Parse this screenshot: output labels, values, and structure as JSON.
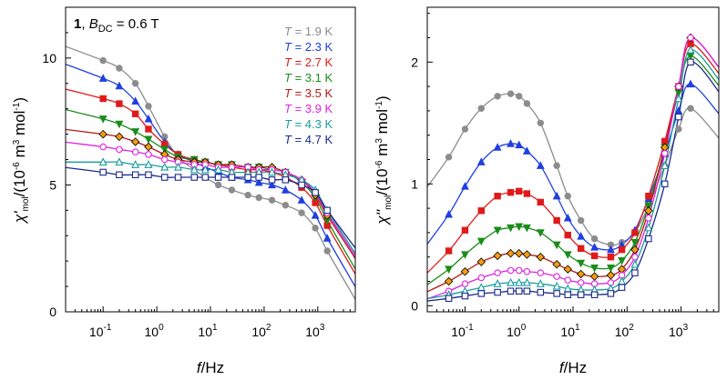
{
  "figure": {
    "panel_label": {
      "compound": "1",
      "field_symbol": "B",
      "field_sub": "DC",
      "field_value": " = 0.6 T"
    },
    "legend_temperatures": [
      {
        "prefix": "T",
        "value": " = 1.9 K",
        "color": "#8c8c8c"
      },
      {
        "prefix": "T",
        "value": " = 2.3 K",
        "color": "#1f3fe0"
      },
      {
        "prefix": "T",
        "value": " = 2.7 K",
        "color": "#e01a1a"
      },
      {
        "prefix": "T",
        "value": " = 3.1 K",
        "color": "#1a8c1a"
      },
      {
        "prefix": "T",
        "value": " = 3.5 K",
        "color": "#b41818"
      },
      {
        "prefix": "T",
        "value": " = 3.9 K",
        "color": "#e020e0"
      },
      {
        "prefix": "T",
        "value": " = 4.3 K",
        "color": "#1a9c9c"
      },
      {
        "prefix": "T",
        "value": " = 4.7 K",
        "color": "#1a2a8c"
      }
    ]
  },
  "chart_data": [
    {
      "type": "scatter",
      "title": "",
      "xlabel_italic": "f",
      "xlabel_rest": "/Hz",
      "ylabel": "χ'mol/(10-6 m3 mol-1)",
      "xscale": "log",
      "xlim": [
        0.02,
        5000
      ],
      "ylim": [
        0,
        12
      ],
      "x_ticks": [
        "10-1",
        "100",
        "101",
        "102",
        "103"
      ],
      "y_ticks": [
        "0",
        "5",
        "10"
      ],
      "x": [
        0.1,
        0.2,
        0.4,
        0.7,
        1.4,
        2.5,
        5,
        8,
        14,
        25,
        50,
        80,
        140,
        250,
        500,
        900,
        1500
      ],
      "series": [
        {
          "name": "T = 1.9 K",
          "color": "#8c8c8c",
          "marker": "circle",
          "fit": true,
          "values": [
            9.9,
            9.6,
            9.0,
            8.1,
            6.9,
            6.1,
            5.6,
            5.3,
            5.0,
            4.8,
            4.6,
            4.5,
            4.4,
            4.2,
            3.9,
            3.3,
            2.4
          ]
        },
        {
          "name": "T = 2.3 K",
          "color": "#1f3fe0",
          "marker": "triangle-up",
          "fit": true,
          "values": [
            9.2,
            8.9,
            8.3,
            7.6,
            6.7,
            6.2,
            5.9,
            5.7,
            5.5,
            5.3,
            5.2,
            5.1,
            5.0,
            4.8,
            4.4,
            3.8,
            2.9
          ]
        },
        {
          "name": "T = 2.7 K",
          "color": "#e01a1a",
          "marker": "square-filled",
          "fit": true,
          "values": [
            8.4,
            8.2,
            7.8,
            7.2,
            6.6,
            6.2,
            6.0,
            5.9,
            5.8,
            5.7,
            5.6,
            5.6,
            5.5,
            5.3,
            4.9,
            4.3,
            3.4
          ]
        },
        {
          "name": "T = 3.1 K",
          "color": "#1a8c1a",
          "marker": "triangle-down",
          "fit": true,
          "values": [
            7.6,
            7.4,
            7.1,
            6.8,
            6.4,
            6.1,
            6.0,
            5.9,
            5.8,
            5.8,
            5.7,
            5.7,
            5.6,
            5.5,
            5.1,
            4.5,
            3.6
          ]
        },
        {
          "name": "T = 3.5 K",
          "color": "#b41818",
          "marker": "diamond",
          "markerFill": "#f39c12",
          "fit": true,
          "values": [
            7.0,
            6.9,
            6.7,
            6.5,
            6.2,
            6.0,
            5.9,
            5.9,
            5.8,
            5.8,
            5.7,
            5.7,
            5.7,
            5.5,
            5.2,
            4.6,
            3.8
          ]
        },
        {
          "name": "T = 3.9 K",
          "color": "#e020e0",
          "marker": "circle-open",
          "fit": true,
          "values": [
            6.5,
            6.4,
            6.3,
            6.2,
            6.0,
            5.9,
            5.8,
            5.8,
            5.7,
            5.7,
            5.7,
            5.6,
            5.6,
            5.5,
            5.2,
            4.7,
            3.9
          ]
        },
        {
          "name": "T = 4.3 K",
          "color": "#1a9c9c",
          "marker": "triangle-open",
          "fit": true,
          "values": [
            5.9,
            5.9,
            5.8,
            5.8,
            5.7,
            5.7,
            5.6,
            5.6,
            5.6,
            5.5,
            5.5,
            5.5,
            5.5,
            5.4,
            5.2,
            4.8,
            4.0
          ]
        },
        {
          "name": "T = 4.7 K",
          "color": "#1a2a8c",
          "marker": "square-open",
          "fit": true,
          "values": [
            5.5,
            5.4,
            5.4,
            5.4,
            5.3,
            5.3,
            5.3,
            5.3,
            5.3,
            5.3,
            5.3,
            5.3,
            5.2,
            5.2,
            5.0,
            4.7,
            4.0
          ]
        }
      ]
    },
    {
      "type": "scatter",
      "title": "",
      "xlabel_italic": "f",
      "xlabel_rest": "/Hz",
      "ylabel": "χ''mol/(10-6 m3 mol-1)",
      "xscale": "log",
      "xlim": [
        0.02,
        5000
      ],
      "ylim": [
        -0.05,
        2.45
      ],
      "x_ticks": [
        "10-1",
        "100",
        "101",
        "102",
        "103"
      ],
      "y_ticks": [
        "0",
        "1",
        "2"
      ],
      "x": [
        0.05,
        0.1,
        0.2,
        0.4,
        0.7,
        1.0,
        1.4,
        2.5,
        5,
        8,
        14,
        25,
        50,
        80,
        140,
        250,
        500,
        900,
        1500
      ],
      "series": [
        {
          "name": "T = 1.9 K",
          "color": "#8c8c8c",
          "marker": "circle",
          "fit": true,
          "values": [
            1.22,
            1.45,
            1.62,
            1.72,
            1.74,
            1.72,
            1.66,
            1.5,
            1.15,
            0.9,
            0.7,
            0.55,
            0.5,
            0.52,
            0.6,
            0.82,
            1.15,
            1.45,
            1.62
          ]
        },
        {
          "name": "T = 2.3 K",
          "color": "#1f3fe0",
          "marker": "triangle-up",
          "fit": true,
          "values": [
            0.75,
            0.98,
            1.18,
            1.3,
            1.33,
            1.32,
            1.27,
            1.15,
            0.9,
            0.72,
            0.57,
            0.48,
            0.46,
            0.5,
            0.62,
            0.88,
            1.25,
            1.6,
            1.82
          ]
        },
        {
          "name": "T = 2.7 K",
          "color": "#e01a1a",
          "marker": "square-filled",
          "fit": true,
          "values": [
            0.45,
            0.62,
            0.78,
            0.9,
            0.93,
            0.94,
            0.92,
            0.85,
            0.7,
            0.58,
            0.47,
            0.41,
            0.4,
            0.46,
            0.6,
            0.9,
            1.35,
            1.8,
            2.15
          ]
        },
        {
          "name": "T = 3.1 K",
          "color": "#1a8c1a",
          "marker": "triangle-down",
          "fit": true,
          "values": [
            0.3,
            0.42,
            0.53,
            0.62,
            0.64,
            0.65,
            0.64,
            0.6,
            0.5,
            0.42,
            0.35,
            0.31,
            0.31,
            0.37,
            0.52,
            0.82,
            1.3,
            1.75,
            2.05
          ]
        },
        {
          "name": "T = 3.5 K",
          "color": "#b41818",
          "marker": "diamond",
          "markerFill": "#f39c12",
          "fit": true,
          "values": [
            0.2,
            0.28,
            0.36,
            0.41,
            0.43,
            0.43,
            0.42,
            0.4,
            0.34,
            0.3,
            0.26,
            0.24,
            0.25,
            0.3,
            0.46,
            0.78,
            1.3,
            1.8,
            2.2
          ]
        },
        {
          "name": "T = 3.9 K",
          "color": "#e020e0",
          "marker": "circle-open",
          "fit": true,
          "values": [
            0.12,
            0.18,
            0.23,
            0.27,
            0.29,
            0.29,
            0.28,
            0.27,
            0.24,
            0.21,
            0.19,
            0.18,
            0.19,
            0.25,
            0.4,
            0.72,
            1.25,
            1.8,
            2.2
          ]
        },
        {
          "name": "T = 4.3 K",
          "color": "#1a9c9c",
          "marker": "triangle-open",
          "fit": true,
          "values": [
            0.09,
            0.12,
            0.15,
            0.18,
            0.19,
            0.19,
            0.19,
            0.18,
            0.16,
            0.14,
            0.13,
            0.13,
            0.14,
            0.2,
            0.34,
            0.64,
            1.15,
            1.7,
            2.1
          ]
        },
        {
          "name": "T = 4.7 K",
          "color": "#1a2a8c",
          "marker": "square-open",
          "fit": true,
          "values": [
            0.06,
            0.08,
            0.1,
            0.11,
            0.12,
            0.12,
            0.12,
            0.11,
            0.1,
            0.09,
            0.09,
            0.09,
            0.1,
            0.15,
            0.27,
            0.55,
            1.0,
            1.55,
            2.0
          ]
        }
      ]
    }
  ]
}
